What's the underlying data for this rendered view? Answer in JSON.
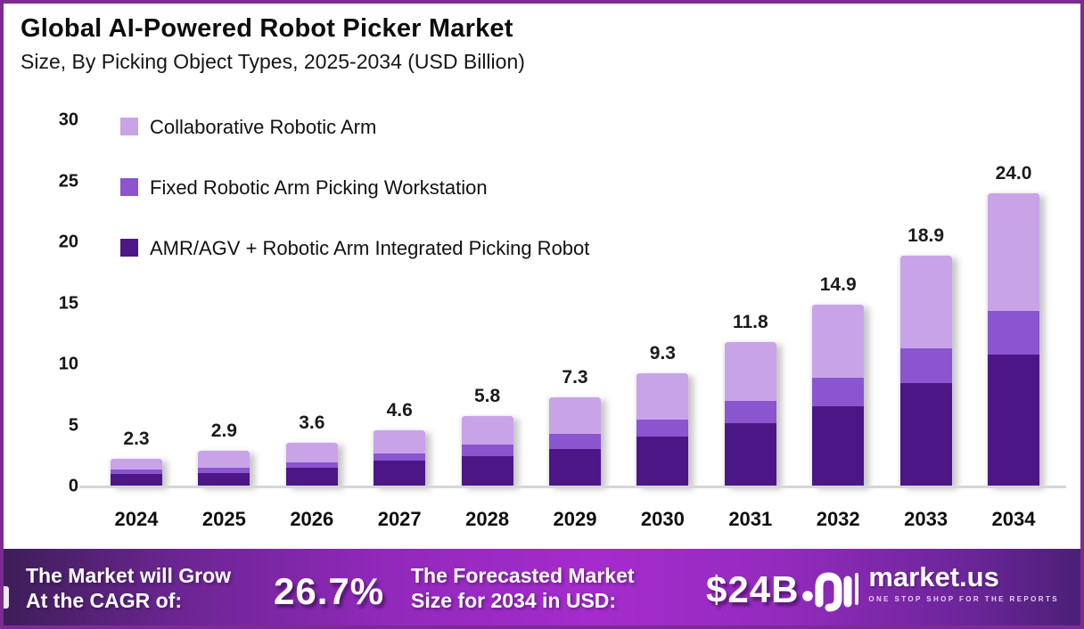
{
  "header": {
    "title": "Global AI-Powered Robot Picker Market",
    "subtitle": "Size, By Picking Object Types, 2025-2034 (USD Billion)"
  },
  "colors": {
    "border": "#7C2C91",
    "axis_line": "#D6D6D6",
    "text": "#121212",
    "footer_text": "#FFFFFF",
    "footer_gradient": [
      "#3E1E58",
      "#9229BB",
      "#A52BCD",
      "#4B2076"
    ]
  },
  "chart_data": {
    "type": "bar",
    "stacked": true,
    "title": "Global AI-Powered Robot Picker Market",
    "subtitle": "Size, By Picking Object Types, 2025-2034 (USD Billion)",
    "unit": "USD Billion",
    "categories": [
      "2024",
      "2025",
      "2026",
      "2027",
      "2028",
      "2029",
      "2030",
      "2031",
      "2032",
      "2033",
      "2034"
    ],
    "series": [
      {
        "name": "Collaborative Robotic Arm",
        "color": "#C9A3E8",
        "values": [
          0.9,
          1.4,
          1.6,
          1.9,
          2.4,
          3.0,
          3.8,
          4.8,
          6.0,
          7.6,
          9.6
        ]
      },
      {
        "name": "Fixed Robotic Arm Picking Workstation",
        "color": "#8A55CE",
        "values": [
          0.4,
          0.4,
          0.5,
          0.6,
          0.9,
          1.2,
          1.4,
          1.8,
          2.3,
          2.8,
          3.6
        ]
      },
      {
        "name": "AMR/AGV + Robotic Arm Integrated Picking Robot",
        "color": "#4C1687",
        "values": [
          1.0,
          1.1,
          1.5,
          2.1,
          2.5,
          3.1,
          4.1,
          5.2,
          6.6,
          8.5,
          10.8
        ]
      }
    ],
    "totals": [
      2.3,
      2.9,
      3.6,
      4.6,
      5.8,
      7.3,
      9.3,
      11.8,
      14.9,
      18.9,
      24.0
    ],
    "total_labels": [
      "2.3",
      "2.9",
      "3.6",
      "4.6",
      "5.8",
      "7.3",
      "9.3",
      "11.8",
      "14.9",
      "18.9",
      "24.0"
    ],
    "ylim": [
      0,
      30
    ],
    "yticks": [
      0,
      5,
      10,
      15,
      20,
      25,
      30
    ],
    "grid": false,
    "legend_position": "upper-left",
    "stack_order_bottom_to_top": [
      "AMR/AGV + Robotic Arm Integrated Picking Robot",
      "Fixed Robotic Arm Picking Workstation",
      "Collaborative Robotic Arm"
    ]
  },
  "footer": {
    "cagr_line1": "The Market will Grow",
    "cagr_line2": "At the CAGR of:",
    "cagr_value": "26.7%",
    "forecast_line1": "The Forecasted Market",
    "forecast_line2": "Size for 2034 in USD:",
    "forecast_value": "$24B",
    "brand": "market.us",
    "tagline": "ONE STOP SHOP FOR THE REPORTS"
  }
}
